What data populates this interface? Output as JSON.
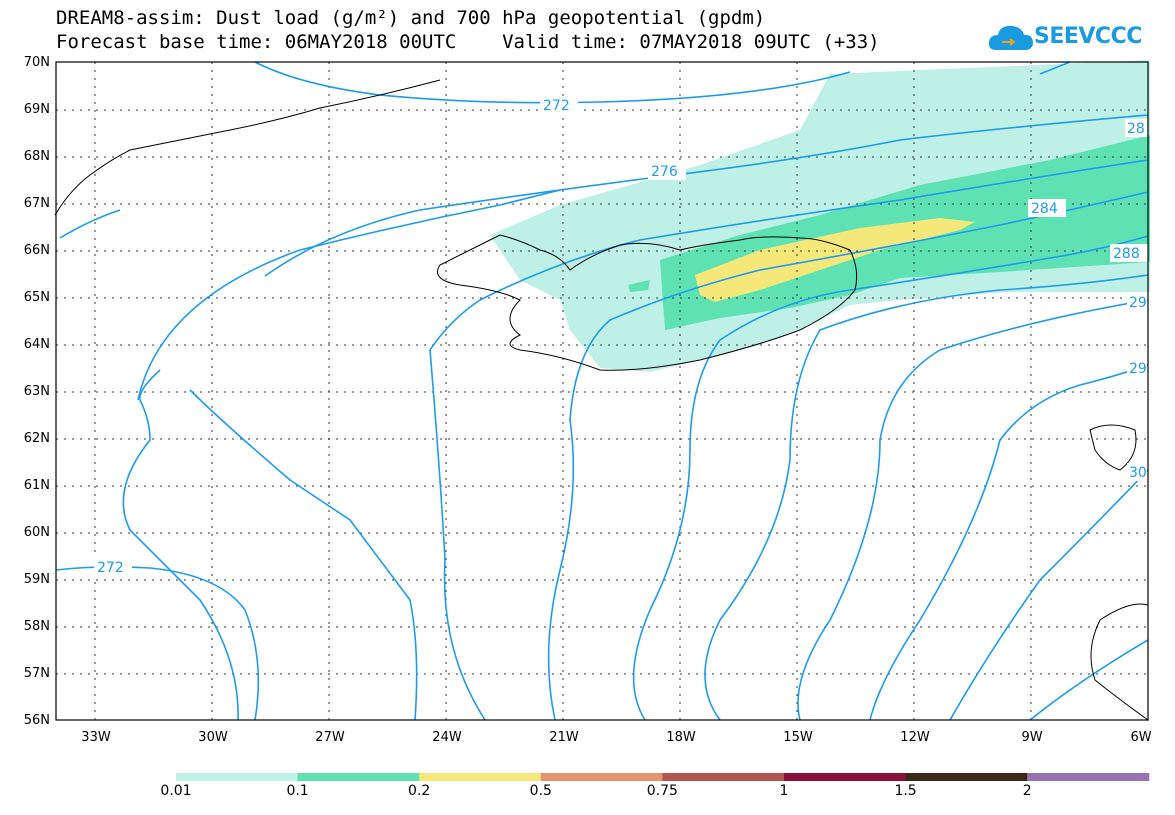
{
  "header": {
    "title_line1": "DREAM8-assim: Dust load (g/m²) and 700 hPa geopotential (gpdm)",
    "title_line2": "Forecast base time: 06MAY2018 00UTC    Valid time: 07MAY2018 09UTC (+33)"
  },
  "logo": {
    "text": "SEEVCCC",
    "icon": "cloud-icon",
    "color": "#1a9be0"
  },
  "map": {
    "lat_labels": [
      "70N",
      "69N",
      "68N",
      "67N",
      "66N",
      "65N",
      "64N",
      "63N",
      "62N",
      "61N",
      "60N",
      "59N",
      "58N",
      "57N",
      "56N"
    ],
    "lon_labels": [
      "33W",
      "30W",
      "27W",
      "24W",
      "21W",
      "18W",
      "15W",
      "12W",
      "9W",
      "6W"
    ],
    "contour_color": "#1e9bef",
    "contour_labels": [
      "272",
      "276",
      "28",
      "284",
      "288",
      "29",
      "29",
      "30",
      "272"
    ]
  },
  "colorbar": {
    "labels": [
      "0.01",
      "0.1",
      "0.2",
      "0.5",
      "0.75",
      "1",
      "1.5",
      "2"
    ],
    "colors": [
      "#bff0e6",
      "#5ee2b4",
      "#f5e87a",
      "#e6946b",
      "#b25450",
      "#88113a",
      "#3a2818",
      "#9a72b4"
    ]
  }
}
